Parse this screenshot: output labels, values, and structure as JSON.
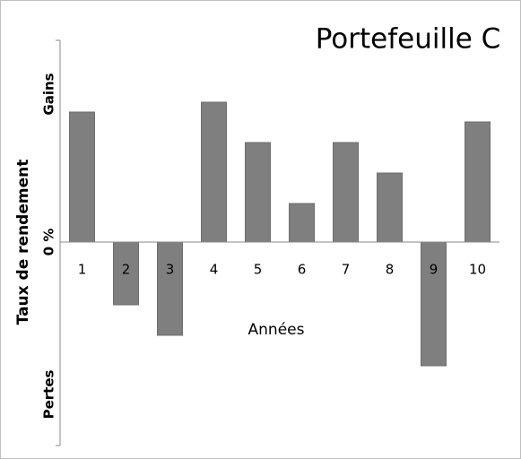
{
  "chart_data": {
    "type": "bar",
    "title": "Portefeuille C",
    "ylabel": "Taux de rendement",
    "xlabel": "Années",
    "annotations": {
      "gains": "Gains",
      "losses": "Pertes"
    },
    "categories": [
      "1",
      "2",
      "3",
      "4",
      "5",
      "6",
      "7",
      "8",
      "9",
      "10"
    ],
    "values": [
      14.5,
      -7,
      -10.4,
      15.6,
      11.1,
      4.3,
      11.1,
      7.7,
      -13.8,
      13.4
    ],
    "color": "#7f7f7f",
    "ylim": [
      -22.7,
      22.5
    ],
    "yticks": [
      {
        "value": 0,
        "label": "0 %"
      }
    ],
    "grid": false
  }
}
